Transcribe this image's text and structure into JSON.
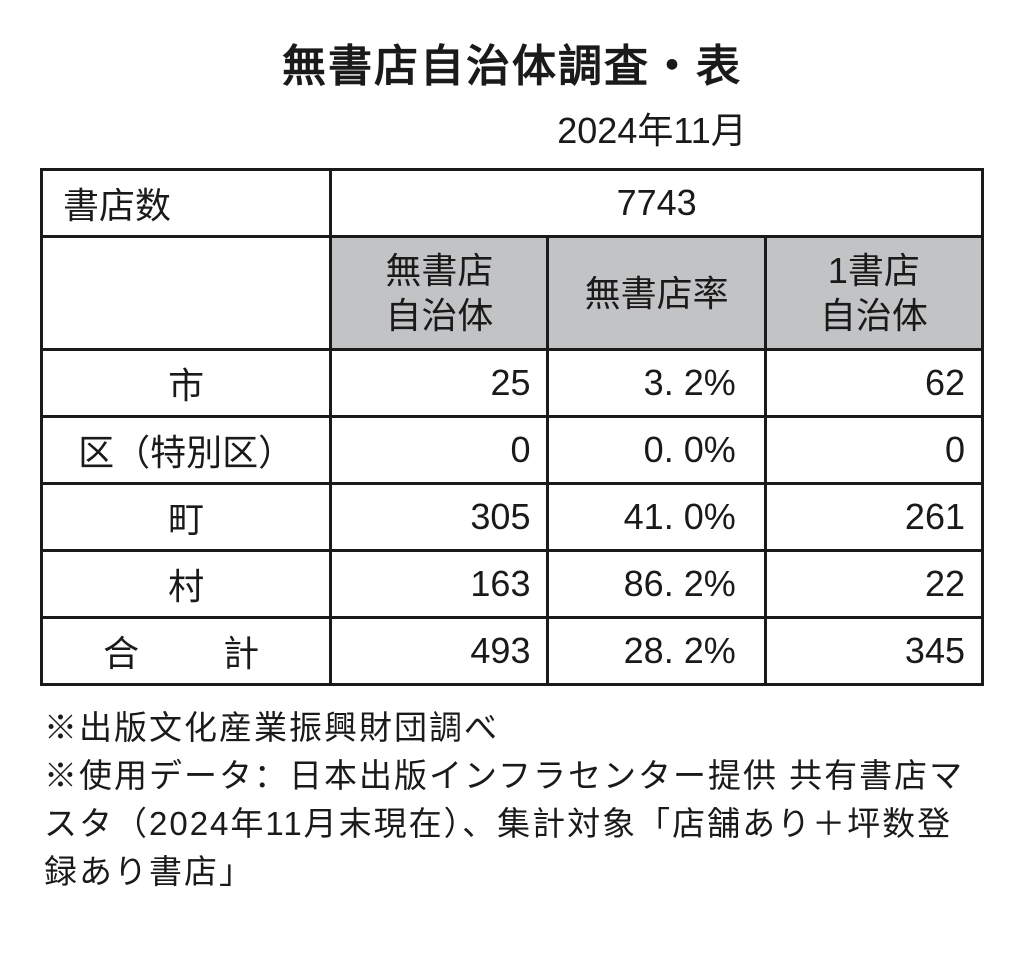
{
  "title": "無書店自治体調査・表",
  "subtitle": "2024年11月",
  "table": {
    "type": "table",
    "border_color": "#1a1a1a",
    "background_color": "#ffffff",
    "header_bg_color": "#c2c3c5",
    "text_color": "#1a1a1a",
    "fontsize": 36,
    "top_row": {
      "label": "書店数",
      "value": "7743"
    },
    "columns": [
      "無書店\n自治体",
      "無書店率",
      "1書店\n自治体"
    ],
    "rows": [
      {
        "label": "市",
        "cells": [
          "25",
          "3. 2%",
          "62"
        ]
      },
      {
        "label": "区（特別区）",
        "cells": [
          "0",
          "0. 0%",
          "0"
        ]
      },
      {
        "label": "町",
        "cells": [
          "305",
          "41. 0%",
          "261"
        ]
      },
      {
        "label": "村",
        "cells": [
          "163",
          "86. 2%",
          "22"
        ]
      },
      {
        "label": "合　計",
        "cells": [
          "493",
          "28. 2%",
          "345"
        ],
        "is_total": true
      }
    ]
  },
  "footnotes": [
    "※出版文化産業振興財団調べ",
    "※使用データ：日本出版インフラセンター提供 共有書店マスタ（2024年11月末現在）、集計対象「店舗あり＋坪数登録あり書店」"
  ]
}
